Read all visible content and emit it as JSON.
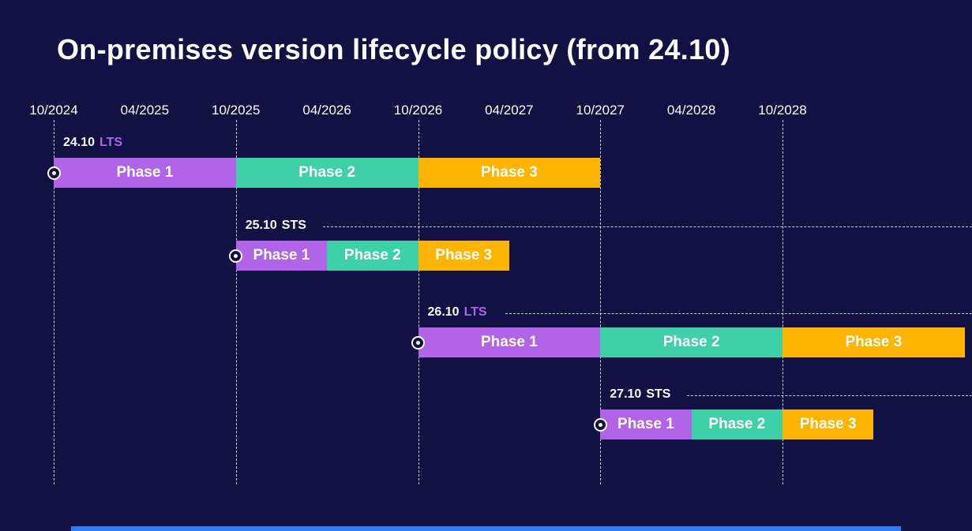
{
  "title": "On-premises version lifecycle policy (from 24.10)",
  "colors": {
    "background": "#121144",
    "phase1": "#b164e8",
    "phase2": "#3ed0a9",
    "phase3": "#ffb400",
    "lts_channel_text": "#b164e8",
    "sts_channel_text": "#ffffff",
    "axis_text": "#ffffff",
    "gridline": "#ffffff",
    "marker": "#ffffff",
    "footer_bar": "#2e7ef6"
  },
  "chart_data": {
    "type": "gantt",
    "title": "On-premises version lifecycle policy (from 24.10)",
    "x_axis": {
      "tick_labels": [
        "10/2024",
        "04/2025",
        "10/2025",
        "04/2026",
        "10/2026",
        "04/2027",
        "10/2027",
        "04/2028",
        "10/2028"
      ],
      "tick_interval_months": 6,
      "gridlines_at": [
        "10/2024",
        "10/2025",
        "10/2026",
        "10/2027",
        "10/2028"
      ],
      "gridline_style": "dashed"
    },
    "phase_colors": {
      "Phase 1": "#b164e8",
      "Phase 2": "#3ed0a9",
      "Phase 3": "#ffb400"
    },
    "releases": [
      {
        "version": "24.10",
        "channel": "LTS",
        "start": "10/2024",
        "release_marker": true,
        "leader_line": false,
        "phases": [
          {
            "label": "Phase 1",
            "start": "10/2024",
            "end": "10/2025",
            "duration_months": 12
          },
          {
            "label": "Phase 2",
            "start": "10/2025",
            "end": "10/2026",
            "duration_months": 12
          },
          {
            "label": "Phase 3",
            "start": "10/2026",
            "end": "10/2027",
            "duration_months": 12
          }
        ]
      },
      {
        "version": "25.10",
        "channel": "STS",
        "start": "10/2025",
        "release_marker": true,
        "leader_line": true,
        "phases": [
          {
            "label": "Phase 1",
            "start": "10/2025",
            "end": "04/2026",
            "duration_months": 6
          },
          {
            "label": "Phase 2",
            "start": "04/2026",
            "end": "10/2026",
            "duration_months": 6
          },
          {
            "label": "Phase 3",
            "start": "10/2026",
            "end": "04/2027",
            "duration_months": 6
          }
        ]
      },
      {
        "version": "26.10",
        "channel": "LTS",
        "start": "10/2026",
        "release_marker": true,
        "leader_line": true,
        "phases": [
          {
            "label": "Phase 1",
            "start": "10/2026",
            "end": "10/2027",
            "duration_months": 12
          },
          {
            "label": "Phase 2",
            "start": "10/2027",
            "end": "10/2028",
            "duration_months": 12
          },
          {
            "label": "Phase 3",
            "start": "10/2028",
            "end": "10/2029",
            "duration_months": 12
          }
        ]
      },
      {
        "version": "27.10",
        "channel": "STS",
        "start": "10/2027",
        "release_marker": true,
        "leader_line": true,
        "phases": [
          {
            "label": "Phase 1",
            "start": "10/2027",
            "end": "04/2028",
            "duration_months": 6
          },
          {
            "label": "Phase 2",
            "start": "04/2028",
            "end": "10/2028",
            "duration_months": 6
          },
          {
            "label": "Phase 3",
            "start": "10/2028",
            "end": "04/2029",
            "duration_months": 6
          }
        ]
      }
    ]
  }
}
